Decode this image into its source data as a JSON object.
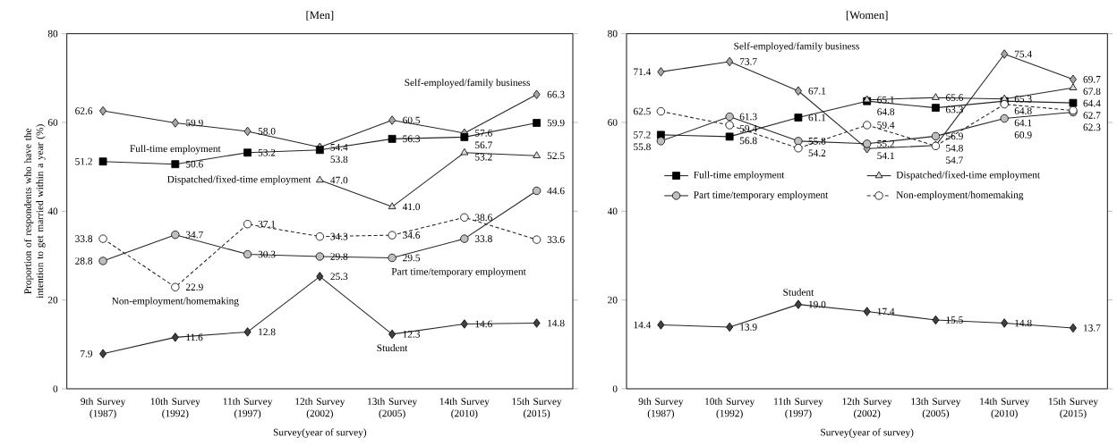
{
  "chart_data": [
    {
      "type": "line",
      "title": "[Men]",
      "xlabel": "Survey(year of  survey)",
      "ylabel": "Proportion of respondents who have the intention to get married within a year (%)",
      "categories": [
        "9th Survey (1987)",
        "10th Survey (1992)",
        "11th Survey (1997)",
        "12th Survey (2002)",
        "13th Survey (2005)",
        "14th Survey (2010)",
        "15th Survey (2015)"
      ],
      "ylim": [
        0,
        80
      ],
      "yticks": [
        0,
        20,
        40,
        60,
        80
      ],
      "series": [
        {
          "name": "Self-employed/family business",
          "color": "#a6a6a6",
          "marker": "diamond",
          "line_style": "solid",
          "values": [
            62.6,
            59.9,
            58.0,
            54.4,
            60.5,
            57.6,
            66.3
          ],
          "value_labels": [
            "62.6",
            "59.9",
            "58.0",
            "54.4",
            "60.5",
            "57.6",
            "66.3"
          ]
        },
        {
          "name": "Full-time employment",
          "color": "#000000",
          "marker": "square",
          "line_style": "solid",
          "values": [
            51.2,
            50.6,
            53.2,
            53.8,
            56.3,
            56.7,
            59.9
          ],
          "value_labels": [
            "51.2",
            "50.6",
            "53.2",
            "53.8",
            "56.3",
            "56.7",
            "59.9"
          ]
        },
        {
          "name": "Dispatched/fixed-time employment",
          "color": "#d9d9d9",
          "marker": "triangle",
          "line_style": "solid",
          "values": [
            null,
            null,
            null,
            47.0,
            41.0,
            53.2,
            52.5
          ],
          "value_labels": [
            null,
            null,
            null,
            "47.0",
            "41.0",
            "53.2",
            "52.5"
          ]
        },
        {
          "name": "Part time/temporary employment",
          "color": "#bfbfbf",
          "marker": "circle",
          "line_style": "solid",
          "values": [
            28.8,
            34.7,
            30.3,
            29.8,
            29.5,
            33.8,
            44.6
          ],
          "value_labels": [
            "28.8",
            "34.7",
            "30.3",
            "29.8",
            "29.5",
            "33.8",
            "44.6"
          ]
        },
        {
          "name": "Non-employment/homemaking",
          "color": "#ffffff",
          "marker": "circle",
          "line_style": "dashed",
          "values": [
            33.8,
            22.9,
            37.1,
            34.3,
            34.6,
            38.6,
            33.6
          ],
          "value_labels": [
            "33.8",
            "22.9",
            "37.1",
            "34.3",
            "34.6",
            "38.6",
            "33.6"
          ]
        },
        {
          "name": "Student",
          "color": "#404040",
          "marker": "diamond",
          "line_style": "solid",
          "values": [
            7.9,
            11.6,
            12.8,
            25.3,
            12.3,
            14.6,
            14.8
          ],
          "value_labels": [
            "7.9",
            "11.6",
            "12.8",
            "25.3",
            "12.3",
            "14.6",
            "14.8"
          ]
        }
      ]
    },
    {
      "type": "line",
      "title": "[Women]",
      "xlabel": "Survey(year of  survey)",
      "categories": [
        "9th Survey (1987)",
        "10th Survey (1992)",
        "11th Survey (1997)",
        "12th Survey (2002)",
        "13th Survey (2005)",
        "14th Survey (2010)",
        "15th Survey (2015)"
      ],
      "ylim": [
        0,
        80
      ],
      "yticks": [
        0,
        20,
        40,
        60,
        80
      ],
      "legend": "left",
      "series": [
        {
          "name": "Self-employed/family business",
          "color": "#a6a6a6",
          "marker": "diamond",
          "line_style": "solid",
          "values": [
            71.4,
            73.7,
            67.1,
            54.1,
            54.8,
            75.4,
            69.7
          ],
          "value_labels": [
            "71.4",
            "73.7",
            "67.1",
            "54.1",
            "54.8",
            "75.4",
            "69.7"
          ]
        },
        {
          "name": "Full-time employment",
          "color": "#000000",
          "marker": "square",
          "line_style": "solid",
          "values": [
            57.2,
            56.8,
            61.1,
            64.8,
            63.3,
            64.8,
            64.4
          ],
          "value_labels": [
            "57.2",
            "56.8",
            "61.1",
            "64.8",
            "63.3",
            "64.8",
            "64.4"
          ]
        },
        {
          "name": "Dispatched/fixed-time employment",
          "color": "#d9d9d9",
          "marker": "triangle",
          "line_style": "solid",
          "values": [
            null,
            null,
            null,
            65.1,
            65.6,
            65.3,
            67.8
          ],
          "value_labels": [
            null,
            null,
            null,
            "65.1",
            "65.6",
            "65.3",
            "67.8"
          ]
        },
        {
          "name": "Part time/temporary employment",
          "color": "#bfbfbf",
          "marker": "circle",
          "line_style": "solid",
          "values": [
            55.8,
            61.3,
            55.8,
            55.2,
            56.9,
            60.9,
            62.3
          ],
          "value_labels": [
            "55.8",
            "61.3",
            "55.8",
            "55.2",
            "56.9",
            "60.9",
            "62.3"
          ]
        },
        {
          "name": "Non-employment/homemaking",
          "color": "#ffffff",
          "marker": "circle",
          "line_style": "dashed",
          "values": [
            62.5,
            59.4,
            54.2,
            59.4,
            54.7,
            64.1,
            62.7
          ],
          "value_labels": [
            "62.5",
            "59.4",
            "54.2",
            "59.4",
            "54.7",
            "64.1",
            "62.7"
          ]
        },
        {
          "name": "Student",
          "color": "#404040",
          "marker": "diamond",
          "line_style": "solid",
          "values": [
            14.4,
            13.9,
            19.0,
            17.4,
            15.5,
            14.8,
            13.7
          ],
          "value_labels": [
            "14.4",
            "13.9",
            "19.0",
            "17.4",
            "15.5",
            "14.8",
            "13.7"
          ]
        }
      ]
    }
  ]
}
